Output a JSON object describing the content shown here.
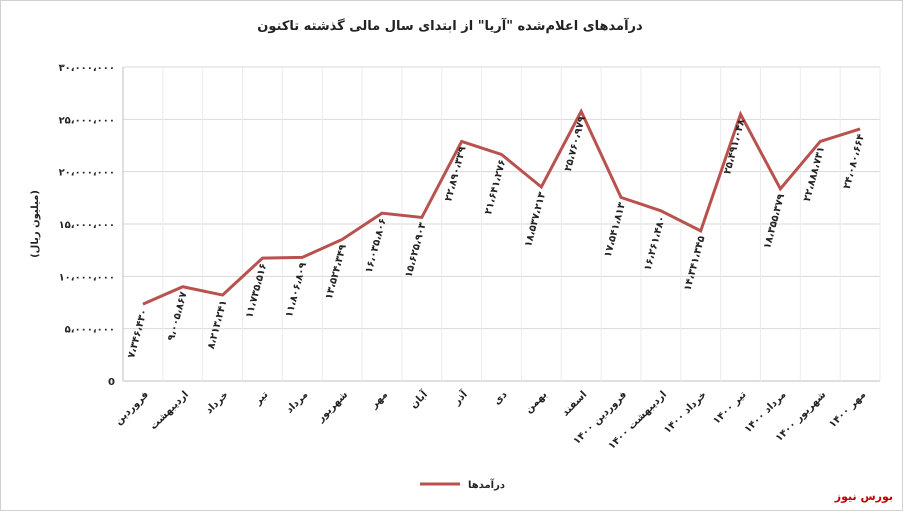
{
  "chart_data": {
    "type": "line",
    "title": "درآمدهای اعلام‌شده \"آریا\" از ابتدای سال مالی گذشته تاکنون",
    "y_label": "(میلیون ریال)",
    "categories": [
      "فروردین",
      "اردیبهشت",
      "خرداد",
      "تیر",
      "مرداد",
      "شهریور",
      "مهر",
      "آبان",
      "آذر",
      "دی",
      "بهمن",
      "اسفند",
      "فروردین ۱۴۰۰",
      "اردیبهشت ۱۴۰۰",
      "خرداد ۱۴۰۰",
      "تیر ۱۴۰۰",
      "مرداد ۱۴۰۰",
      "شهریور ۱۴۰۰",
      "مهر ۱۴۰۰"
    ],
    "series": [
      {
        "name": "درآمدها",
        "color": "#b9524e",
        "values": [
          7346430,
          9005867,
          8213241,
          11735516,
          11806809,
          13524349,
          16035806,
          15625903,
          22890339,
          21641276,
          18537213,
          25760979,
          17541813,
          16261480,
          14341345,
          25491048,
          18355379,
          22888731,
          24080664
        ],
        "value_labels": [
          "۷،۳۴۶،۴۳۰",
          "۹،۰۰۵،۸۶۷",
          "۸،۲۱۳،۲۴۱",
          "۱۱،۷۳۵،۵۱۶",
          "۱۱،۸۰۶،۸۰۹",
          "۱۳،۵۲۴،۳۴۹",
          "۱۶،۰۳۵،۸۰۶",
          "۱۵،۶۲۵،۹۰۳",
          "۲۲،۸۹۰،۳۳۹",
          "۲۱،۶۴۱،۲۷۶",
          "۱۸،۵۳۷،۲۱۳",
          "۲۵،۷۶۰،۹۷۹",
          "۱۷،۵۴۱،۸۱۳",
          "۱۶،۲۶۱،۴۸۰",
          "۱۴،۳۴۱،۳۴۵",
          "۲۵،۴۹۱،۰۴۸",
          "۱۸،۳۵۵،۳۷۹",
          "۲۲،۸۸۸،۷۳۱",
          "۲۴،۰۸۰،۶۶۴"
        ]
      }
    ],
    "ylim": [
      0,
      30000000
    ],
    "yticks": [
      0,
      {
        "value": 5000000,
        "label": "۵،۰۰۰،۰۰۰"
      },
      {
        "value": 10000000,
        "label": "۱۰،۰۰۰،۰۰۰"
      },
      {
        "value": 15000000,
        "label": "۱۵،۰۰۰،۰۰۰"
      },
      {
        "value": 20000000,
        "label": "۲۰،۰۰۰،۰۰۰"
      },
      {
        "value": 25000000,
        "label": "۲۵،۰۰۰،۰۰۰"
      },
      {
        "value": 30000000,
        "label": "۳۰،۰۰۰،۰۰۰"
      }
    ],
    "grid": true,
    "legend": "bottom",
    "source": "بورس نیوز"
  }
}
